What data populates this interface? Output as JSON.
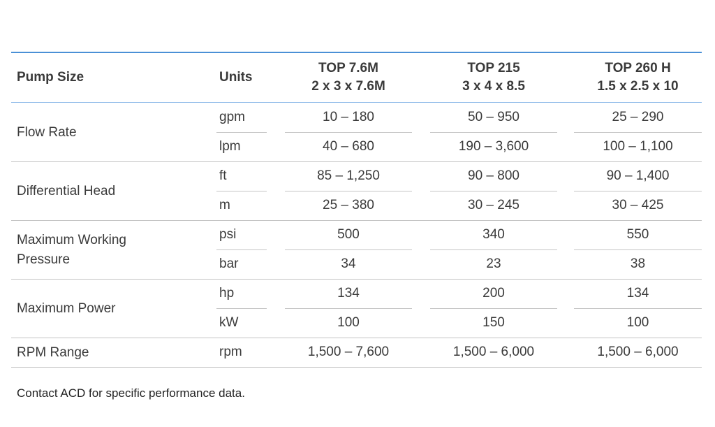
{
  "header": {
    "pump_size": "Pump Size",
    "units": "Units",
    "columns": [
      {
        "line1": "TOP 7.6M",
        "line2": "2 x 3 x 7.6M"
      },
      {
        "line1": "TOP 215",
        "line2": "3 x 4 x 8.5"
      },
      {
        "line1": "TOP 260 H",
        "line2": "1.5 x 2.5 x 10"
      }
    ]
  },
  "groups": [
    {
      "label": "Flow Rate",
      "rows": [
        {
          "unit": "gpm",
          "values": [
            "10 – 180",
            "50 – 950",
            "25 – 290"
          ]
        },
        {
          "unit": "lpm",
          "values": [
            "40 – 680",
            "190 – 3,600",
            "100 – 1,100"
          ]
        }
      ]
    },
    {
      "label": "Differential Head",
      "rows": [
        {
          "unit": "ft",
          "values": [
            "85 – 1,250",
            "90 – 800",
            "90 – 1,400"
          ]
        },
        {
          "unit": "m",
          "values": [
            "25 – 380",
            "30 – 245",
            "30 – 425"
          ]
        }
      ]
    },
    {
      "label": "Maximum Working\nPressure",
      "rows": [
        {
          "unit": "psi",
          "values": [
            "500",
            "340",
            "550"
          ]
        },
        {
          "unit": "bar",
          "values": [
            "34",
            "23",
            "38"
          ]
        }
      ]
    },
    {
      "label": "Maximum Power",
      "rows": [
        {
          "unit": "hp",
          "values": [
            "134",
            "200",
            "134"
          ]
        },
        {
          "unit": "kW",
          "values": [
            "100",
            "150",
            "100"
          ]
        }
      ]
    },
    {
      "label": "RPM Range",
      "rows": [
        {
          "unit": "rpm",
          "values": [
            "1,500 – 7,600",
            "1,500 – 6,000",
            "1,500 – 6,000"
          ]
        }
      ]
    }
  ],
  "footnote": "Contact ACD for specific performance data.",
  "colors": {
    "accent_rule": "#4a90d6",
    "divider": "#c4c4c4",
    "text": "#3a3a3a"
  }
}
